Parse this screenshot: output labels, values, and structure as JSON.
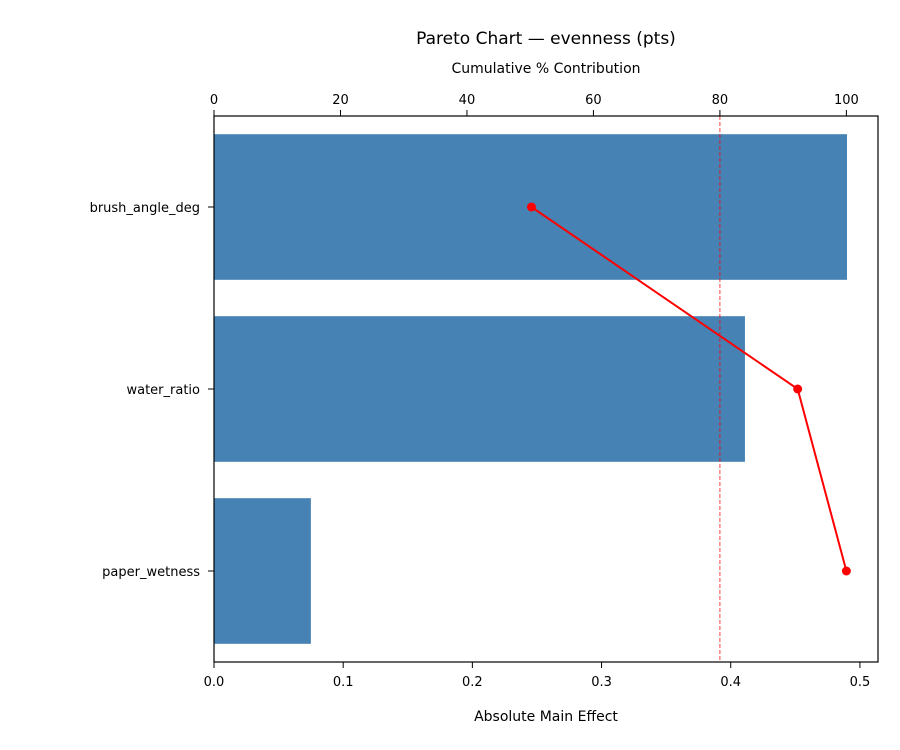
{
  "chart_data": {
    "type": "bar",
    "orientation": "horizontal",
    "title": "Pareto Chart — evenness (pts)",
    "xlabel": "Absolute Main Effect",
    "secondary_xlabel": "Cumulative % Contribution",
    "categories": [
      "brush_angle_deg",
      "water_ratio",
      "paper_wetness"
    ],
    "values": [
      0.49,
      0.411,
      0.075
    ],
    "bar_color": "#4682b4",
    "xlim": [
      0.0,
      0.514
    ],
    "xticks": [
      "0.0",
      "0.1",
      "0.2",
      "0.3",
      "0.4",
      "0.5"
    ],
    "secondary_xlim": [
      0,
      105
    ],
    "secondary_xticks": [
      "0",
      "20",
      "40",
      "60",
      "80",
      "100"
    ],
    "cumulative": {
      "values": [
        50.2,
        92.3,
        100.0
      ],
      "color": "#ff0000"
    },
    "threshold": {
      "value": 80,
      "color": "#ff0000",
      "style": "dashed"
    },
    "grid": false
  }
}
